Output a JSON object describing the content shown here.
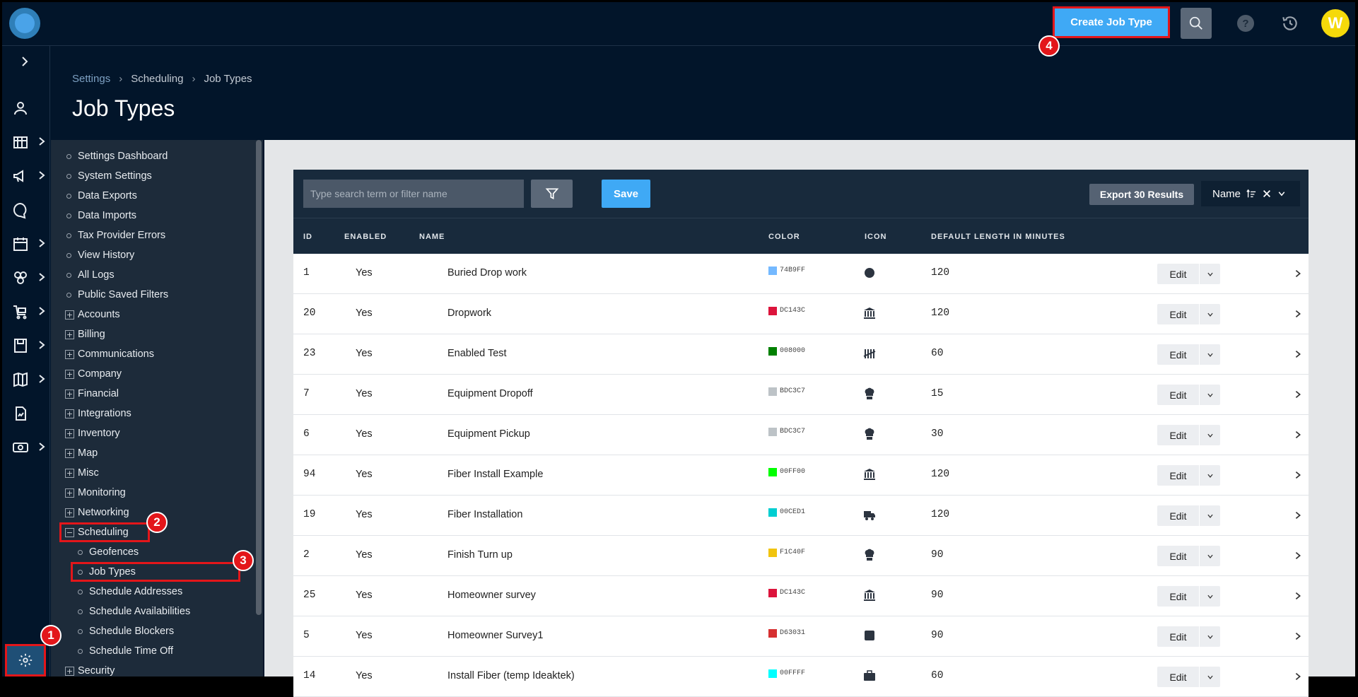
{
  "topbar": {
    "create_button": "Create Job Type",
    "avatar_initial": "W"
  },
  "badges": [
    "1",
    "2",
    "3",
    "4"
  ],
  "breadcrumb": [
    "Settings",
    "Scheduling",
    "Job Types"
  ],
  "page_title": "Job Types",
  "tree": {
    "items": [
      {
        "label": "Settings Dashboard",
        "type": "leaf"
      },
      {
        "label": "System Settings",
        "type": "leaf"
      },
      {
        "label": "Data Exports",
        "type": "leaf"
      },
      {
        "label": "Data Imports",
        "type": "leaf"
      },
      {
        "label": "Tax Provider Errors",
        "type": "leaf"
      },
      {
        "label": "View History",
        "type": "leaf"
      },
      {
        "label": "All Logs",
        "type": "leaf"
      },
      {
        "label": "Public Saved Filters",
        "type": "leaf"
      },
      {
        "label": "Accounts",
        "type": "group"
      },
      {
        "label": "Billing",
        "type": "group"
      },
      {
        "label": "Communications",
        "type": "group"
      },
      {
        "label": "Company",
        "type": "group"
      },
      {
        "label": "Financial",
        "type": "group"
      },
      {
        "label": "Integrations",
        "type": "group"
      },
      {
        "label": "Inventory",
        "type": "group"
      },
      {
        "label": "Map",
        "type": "group"
      },
      {
        "label": "Misc",
        "type": "group"
      },
      {
        "label": "Monitoring",
        "type": "group"
      },
      {
        "label": "Networking",
        "type": "group"
      },
      {
        "label": "Scheduling",
        "type": "open"
      },
      {
        "label": "Geofences",
        "type": "sub"
      },
      {
        "label": "Job Types",
        "type": "sub"
      },
      {
        "label": "Schedule Addresses",
        "type": "sub"
      },
      {
        "label": "Schedule Availabilities",
        "type": "sub"
      },
      {
        "label": "Schedule Blockers",
        "type": "sub"
      },
      {
        "label": "Schedule Time Off",
        "type": "sub"
      },
      {
        "label": "Security",
        "type": "group"
      }
    ]
  },
  "toolbar": {
    "search_placeholder": "Type search term or filter name",
    "save_label": "Save",
    "export_label": "Export 30 Results",
    "sort_label": "Name"
  },
  "table": {
    "headers": [
      "ID",
      "ENABLED",
      "NAME",
      "COLOR",
      "ICON",
      "DEFAULT LENGTH IN MINUTES"
    ],
    "edit_label": "Edit",
    "rows": [
      {
        "id": "1",
        "enabled": "Yes",
        "name": "Buried Drop work",
        "color": "74B9FF",
        "swatch": "#74b9ff",
        "icon": "circle-icon",
        "length": "120"
      },
      {
        "id": "20",
        "enabled": "Yes",
        "name": "Dropwork",
        "color": "DC143C",
        "swatch": "#dc143c",
        "icon": "bank-icon",
        "length": "120"
      },
      {
        "id": "23",
        "enabled": "Yes",
        "name": "Enabled Test",
        "color": "008000",
        "swatch": "#008000",
        "icon": "tally-icon",
        "length": "60"
      },
      {
        "id": "7",
        "enabled": "Yes",
        "name": "Equipment Dropoff",
        "color": "BDC3C7",
        "swatch": "#bdc3c7",
        "icon": "chef-hat-icon",
        "length": "15"
      },
      {
        "id": "6",
        "enabled": "Yes",
        "name": "Equipment Pickup",
        "color": "BDC3C7",
        "swatch": "#bdc3c7",
        "icon": "chef-hat-icon",
        "length": "30"
      },
      {
        "id": "94",
        "enabled": "Yes",
        "name": "Fiber Install Example",
        "color": "00FF00",
        "swatch": "#00ff00",
        "icon": "bank-icon",
        "length": "120"
      },
      {
        "id": "19",
        "enabled": "Yes",
        "name": "Fiber Installation",
        "color": "00CED1",
        "swatch": "#00ced1",
        "icon": "truck-icon",
        "length": "120"
      },
      {
        "id": "2",
        "enabled": "Yes",
        "name": "Finish Turn up",
        "color": "F1C40F",
        "swatch": "#f1c40f",
        "icon": "chef-hat-icon",
        "length": "90"
      },
      {
        "id": "25",
        "enabled": "Yes",
        "name": "Homeowner survey",
        "color": "DC143C",
        "swatch": "#dc143c",
        "icon": "bank-icon",
        "length": "90"
      },
      {
        "id": "5",
        "enabled": "Yes",
        "name": "Homeowner Survey1",
        "color": "D63031",
        "swatch": "#d63031",
        "icon": "square-icon",
        "length": "90"
      },
      {
        "id": "14",
        "enabled": "Yes",
        "name": "Install Fiber (temp Ideaktek)",
        "color": "00FFFF",
        "swatch": "#00ffff",
        "icon": "briefcase-icon",
        "length": "60"
      }
    ]
  },
  "colors": {
    "accent": "#3fa9f5",
    "highlight": "#e3161a",
    "navy": "#02152a"
  }
}
